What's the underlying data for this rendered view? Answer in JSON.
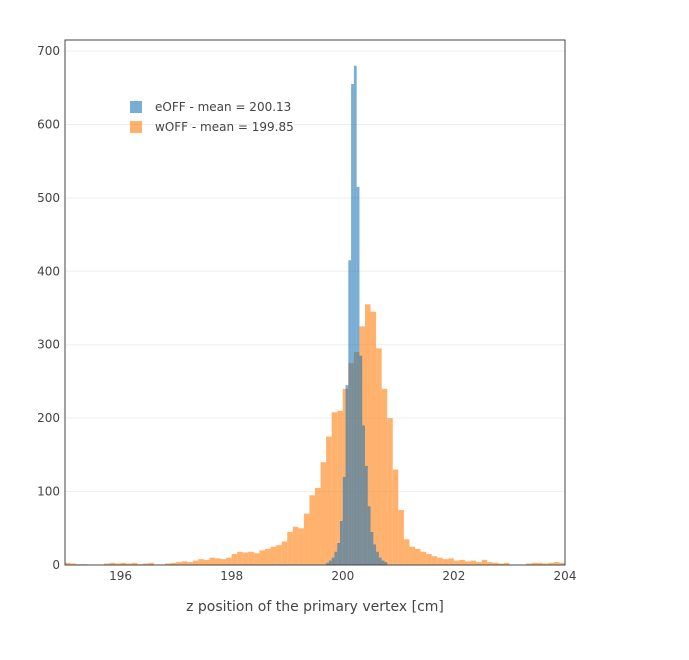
{
  "chart_data": {
    "type": "bar",
    "xlabel": "z position of the primary vertex [cm]",
    "ylabel": "",
    "xlim": [
      195,
      204
    ],
    "ylim": [
      0,
      715
    ],
    "x_ticks": [
      196,
      198,
      200,
      202,
      204
    ],
    "y_ticks": [
      0,
      100,
      200,
      300,
      400,
      500,
      600,
      700
    ],
    "grid": true,
    "legend_position": "top-left",
    "series": [
      {
        "name": "eOFF - mean = 200.13",
        "color": "#1f77b4",
        "bin_width": 0.05,
        "bins": [
          [
            199.7,
            3
          ],
          [
            199.75,
            6
          ],
          [
            199.8,
            10
          ],
          [
            199.85,
            18
          ],
          [
            199.9,
            30
          ],
          [
            199.95,
            60
          ],
          [
            200.0,
            120
          ],
          [
            200.05,
            245
          ],
          [
            200.1,
            415
          ],
          [
            200.15,
            655
          ],
          [
            200.2,
            680
          ],
          [
            200.25,
            515
          ],
          [
            200.3,
            285
          ],
          [
            200.35,
            190
          ],
          [
            200.4,
            135
          ],
          [
            200.45,
            80
          ],
          [
            200.5,
            45
          ],
          [
            200.55,
            28
          ],
          [
            200.6,
            18
          ],
          [
            200.65,
            10
          ],
          [
            200.7,
            6
          ],
          [
            200.75,
            4
          ]
        ]
      },
      {
        "name": "wOFF - mean = 199.85",
        "color": "#ff7f0e",
        "bin_width": 0.1,
        "bins": [
          [
            195.0,
            3
          ],
          [
            195.1,
            2
          ],
          [
            195.2,
            1
          ],
          [
            195.3,
            1
          ],
          [
            195.7,
            2
          ],
          [
            195.8,
            3
          ],
          [
            195.9,
            2
          ],
          [
            196.0,
            3
          ],
          [
            196.1,
            2
          ],
          [
            196.2,
            3
          ],
          [
            196.3,
            1
          ],
          [
            196.4,
            2
          ],
          [
            196.5,
            3
          ],
          [
            196.8,
            2
          ],
          [
            196.9,
            3
          ],
          [
            197.0,
            4
          ],
          [
            197.1,
            5
          ],
          [
            197.2,
            4
          ],
          [
            197.3,
            6
          ],
          [
            197.4,
            8
          ],
          [
            197.5,
            7
          ],
          [
            197.6,
            10
          ],
          [
            197.7,
            9
          ],
          [
            197.8,
            8
          ],
          [
            197.9,
            10
          ],
          [
            198.0,
            15
          ],
          [
            198.1,
            18
          ],
          [
            198.2,
            17
          ],
          [
            198.3,
            18
          ],
          [
            198.4,
            16
          ],
          [
            198.5,
            20
          ],
          [
            198.6,
            22
          ],
          [
            198.7,
            25
          ],
          [
            198.8,
            27
          ],
          [
            198.9,
            32
          ],
          [
            199.0,
            45
          ],
          [
            199.1,
            52
          ],
          [
            199.2,
            50
          ],
          [
            199.3,
            70
          ],
          [
            199.4,
            95
          ],
          [
            199.5,
            105
          ],
          [
            199.6,
            140
          ],
          [
            199.7,
            175
          ],
          [
            199.8,
            208
          ],
          [
            199.9,
            210
          ],
          [
            200.0,
            240
          ],
          [
            200.1,
            275
          ],
          [
            200.2,
            290
          ],
          [
            200.3,
            325
          ],
          [
            200.4,
            355
          ],
          [
            200.5,
            345
          ],
          [
            200.6,
            295
          ],
          [
            200.7,
            240
          ],
          [
            200.8,
            200
          ],
          [
            200.9,
            130
          ],
          [
            201.0,
            75
          ],
          [
            201.1,
            35
          ],
          [
            201.2,
            25
          ],
          [
            201.3,
            22
          ],
          [
            201.4,
            18
          ],
          [
            201.5,
            15
          ],
          [
            201.6,
            12
          ],
          [
            201.7,
            10
          ],
          [
            201.8,
            8
          ],
          [
            201.9,
            9
          ],
          [
            202.0,
            6
          ],
          [
            202.1,
            7
          ],
          [
            202.2,
            5
          ],
          [
            202.3,
            6
          ],
          [
            202.4,
            4
          ],
          [
            202.5,
            7
          ],
          [
            202.6,
            4
          ],
          [
            202.7,
            3
          ],
          [
            202.8,
            2
          ],
          [
            202.9,
            3
          ],
          [
            203.3,
            2
          ],
          [
            203.4,
            3
          ],
          [
            203.5,
            3
          ],
          [
            203.6,
            2
          ],
          [
            203.7,
            3
          ],
          [
            203.8,
            4
          ],
          [
            203.9,
            3
          ]
        ]
      }
    ]
  }
}
